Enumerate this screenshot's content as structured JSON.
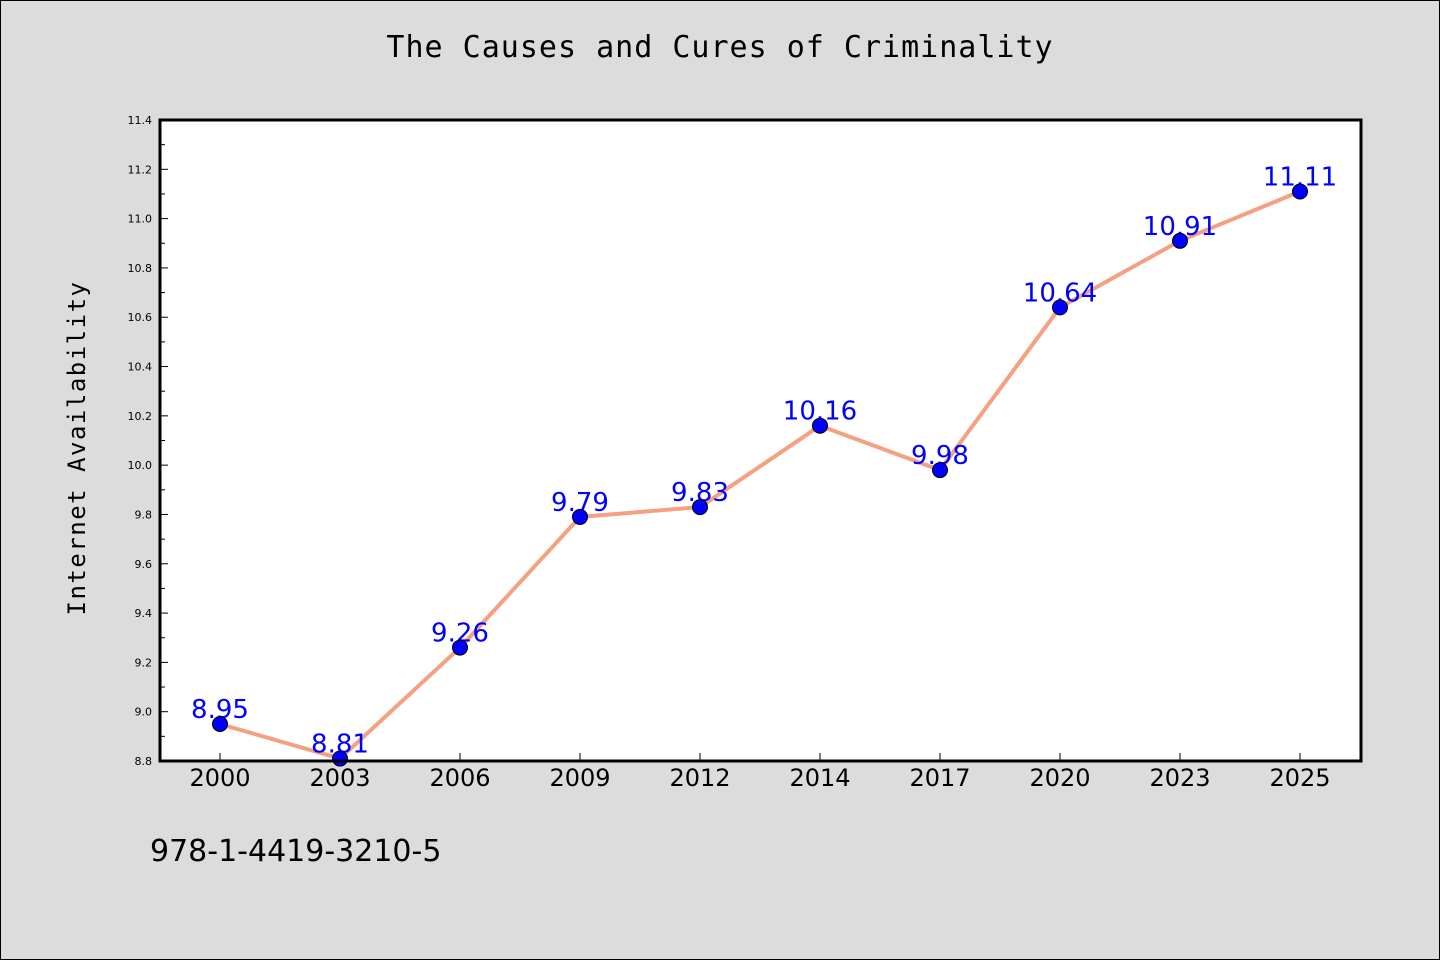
{
  "chart_data": {
    "type": "line",
    "title": "The Causes and Cures of Criminality",
    "ylabel": "Internet Availability",
    "xlabel": "",
    "categories": [
      "2000",
      "2003",
      "2006",
      "2009",
      "2012",
      "2014",
      "2017",
      "2020",
      "2023",
      "2025"
    ],
    "series": [
      {
        "values": [
          8.95,
          8.81,
          9.26,
          9.79,
          9.83,
          10.16,
          9.98,
          10.64,
          10.91,
          11.11
        ],
        "labels": [
          "8.95",
          "8.81",
          "9.26",
          "9.79",
          "9.83",
          "10.16",
          "9.98",
          "10.64",
          "10.91",
          "11.11"
        ]
      }
    ],
    "yticks": [
      "8.8",
      "9.0",
      "9.2",
      "9.4",
      "9.6",
      "9.8",
      "10.0",
      "10.2",
      "10.4",
      "10.6",
      "10.8",
      "11.0",
      "11.2",
      "11.4"
    ],
    "ylim": [
      8.8,
      11.4
    ],
    "grid": false,
    "line_color": "#f4a081",
    "marker_color": "#0000ff",
    "label_color": "#0000ff"
  },
  "footer": {
    "isbn": "978-1-4419-3210-5"
  }
}
